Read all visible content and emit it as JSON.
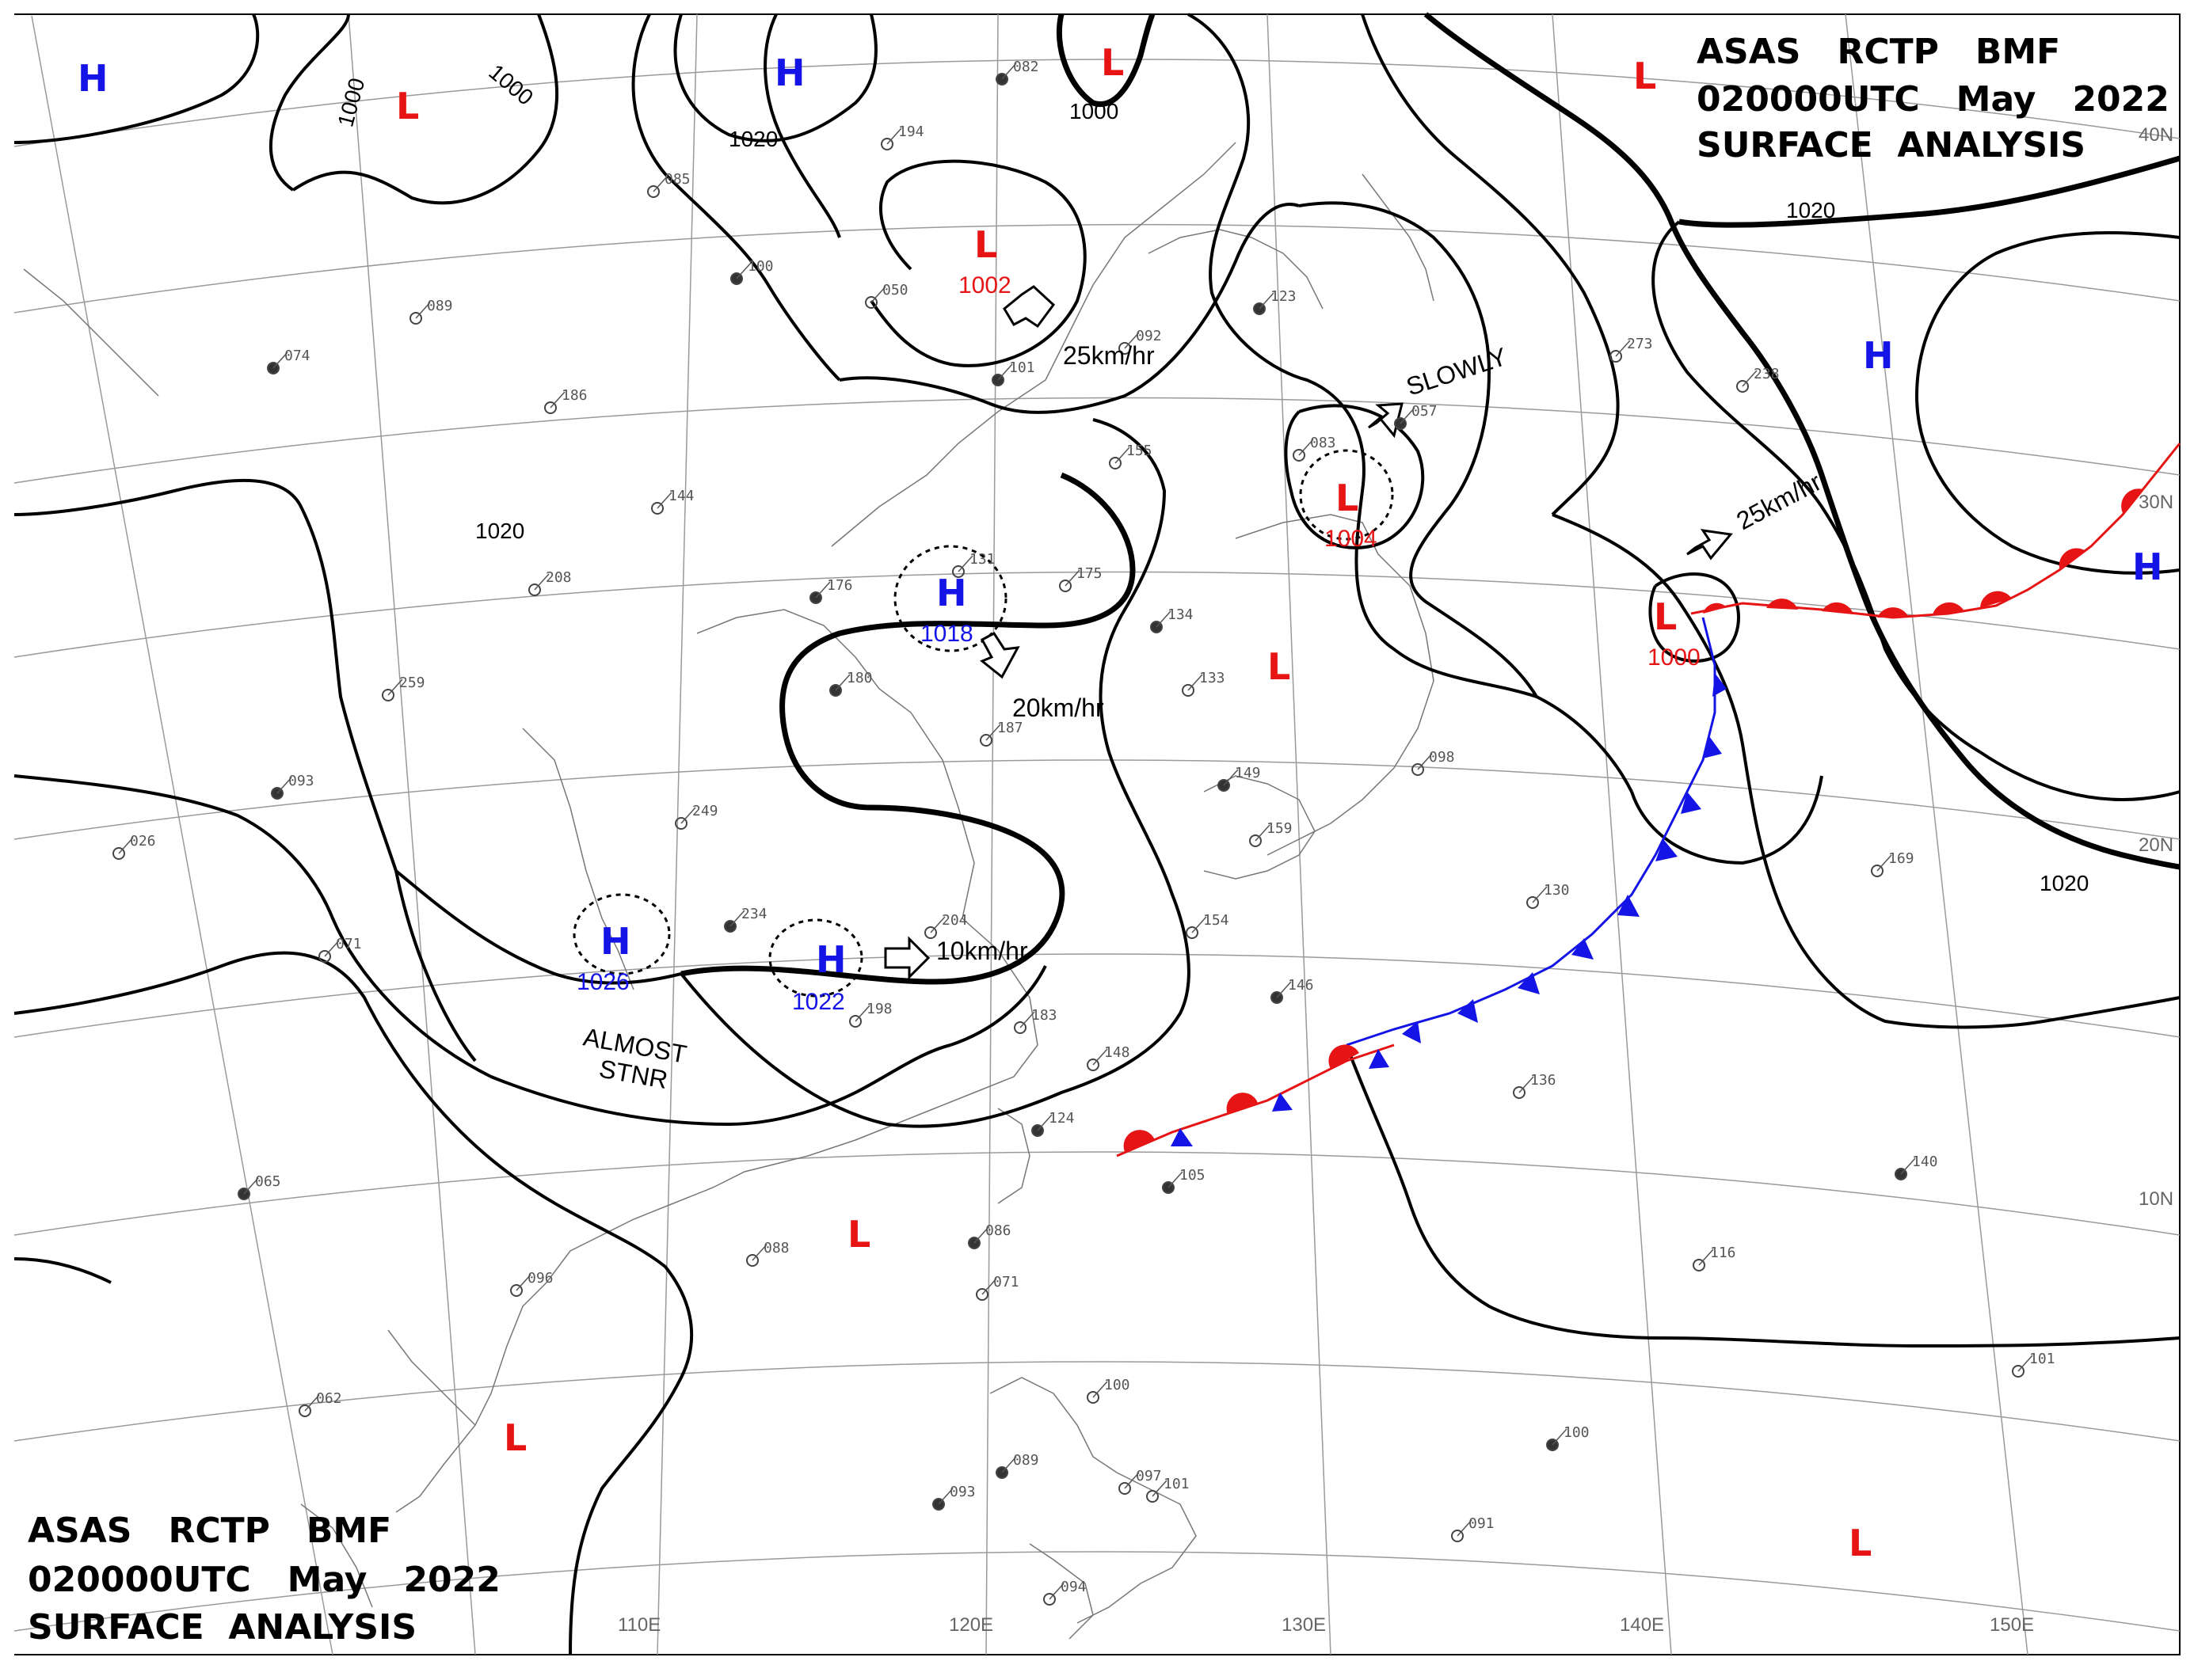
{
  "header_top": {
    "line1": "ASAS   RCTP   BMF",
    "line2": "020000UTC   May   2022",
    "line3": "SURFACE  ANALYSIS"
  },
  "header_bottom": {
    "line1": "ASAS   RCTP   BMF",
    "line2": "020000UTC   May   2022",
    "line3": "SURFACE  ANALYSIS"
  },
  "longitude_labels": [
    "110E",
    "120E",
    "130E",
    "140E",
    "150E"
  ],
  "latitude_labels": [
    "40N",
    "30N",
    "20N",
    "10N"
  ],
  "isobar_labels": [
    "1000",
    "1000",
    "1020",
    "1000",
    "1020",
    "1020",
    "1020"
  ],
  "pressure_centers": {
    "highs": [
      {
        "letter": "H",
        "value": ""
      },
      {
        "letter": "H",
        "value": ""
      },
      {
        "letter": "H",
        "value": "1018"
      },
      {
        "letter": "H",
        "value": "1026"
      },
      {
        "letter": "H",
        "value": "1022"
      },
      {
        "letter": "H",
        "value": ""
      },
      {
        "letter": "H",
        "value": ""
      }
    ],
    "lows": [
      {
        "letter": "L",
        "value": ""
      },
      {
        "letter": "L",
        "value": ""
      },
      {
        "letter": "L",
        "value": "1002"
      },
      {
        "letter": "L",
        "value": "1004"
      },
      {
        "letter": "L",
        "value": ""
      },
      {
        "letter": "L",
        "value": "1000"
      },
      {
        "letter": "L",
        "value": ""
      },
      {
        "letter": "L",
        "value": ""
      },
      {
        "letter": "L",
        "value": ""
      },
      {
        "letter": "L",
        "value": ""
      }
    ]
  },
  "movements": [
    "25km/hr",
    "20km/hr",
    "10km/hr",
    "SLOWLY",
    "25km/hr",
    "ALMOST",
    "STNR"
  ],
  "fronts": {
    "warm_color": "#e61414",
    "cold_color": "#1414e6"
  },
  "stations": [
    "082",
    "194",
    "085",
    "100",
    "050",
    "092",
    "101",
    "186",
    "089",
    "074",
    "144",
    "208",
    "176",
    "131",
    "175",
    "180",
    "259",
    "249",
    "234",
    "204",
    "198",
    "123",
    "155",
    "083",
    "057",
    "273",
    "238",
    "134",
    "133",
    "098",
    "149",
    "159",
    "154",
    "146",
    "183",
    "148",
    "124",
    "130",
    "136",
    "105",
    "088",
    "096",
    "065",
    "071",
    "062",
    "086",
    "071",
    "100",
    "089",
    "097",
    "101",
    "093",
    "094",
    "116",
    "140",
    "169",
    "101",
    "100",
    "091",
    "026",
    "093",
    "187"
  ],
  "icons": {
    "arrow": "hollow-arrow-icon"
  }
}
